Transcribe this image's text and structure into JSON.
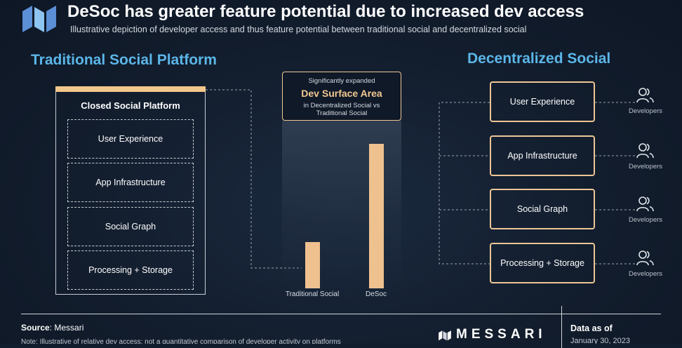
{
  "header": {
    "title": "DeSoc has greater feature potential due to increased dev access",
    "subtitle": "Illustrative depiction of developer access and thus feature potential between traditional social and decentralized social"
  },
  "left": {
    "section_title": "Traditional Social Platform",
    "box_title": "Closed Social Platform",
    "layers": [
      "User Experience",
      "App Infrastructure",
      "Social Graph",
      "Processing + Storage"
    ]
  },
  "middle": {
    "callout_top": "Significantly expanded",
    "callout_main": "Dev Surface Area",
    "callout_line1": "in Decentralized Social vs",
    "callout_line2": "Traditional Social",
    "bars": [
      {
        "label": "Traditional Social",
        "value": 0.32
      },
      {
        "label": "DeSoc",
        "value": 1.0
      }
    ]
  },
  "right": {
    "section_title": "Decentralized Social",
    "layers": [
      "User Experience",
      "App Infrastructure",
      "Social Graph",
      "Processing + Storage"
    ],
    "developer_label": "Developers"
  },
  "footer": {
    "source_label": "Source",
    "source_value": ": Messari",
    "footnote": "Note: Illustrative of relative dev access; not a quantitative comparison of developer activity on platforms",
    "brand": "MESSARI",
    "data_as_of": "Data as of",
    "date": "January 30, 2023"
  },
  "colors": {
    "accent_blue": "#5bb6e8",
    "accent_orange": "#efc18f",
    "background": "#111c2c"
  },
  "icons": [
    "messari-logo",
    "developers-icon"
  ]
}
